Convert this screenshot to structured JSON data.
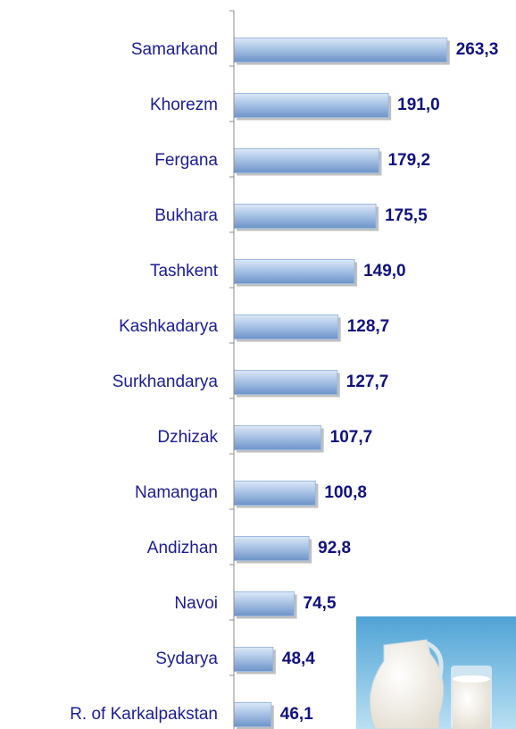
{
  "chart_data": {
    "type": "bar",
    "orientation": "horizontal",
    "categories": [
      "Samarkand",
      "Khorezm",
      "Fergana",
      "Bukhara",
      "Tashkent",
      "Kashkadarya",
      "Surkhandarya",
      "Dzhizak",
      "Namangan",
      "Andizhan",
      "Navoi",
      "Sydarya",
      "R. of Karkalpakstan"
    ],
    "values": [
      263.3,
      191.0,
      179.2,
      175.5,
      149.0,
      128.7,
      127.7,
      107.7,
      100.8,
      92.8,
      74.5,
      48.4,
      46.1
    ],
    "value_labels": [
      "263,3",
      "191,0",
      "179,2",
      "175,5",
      "149,0",
      "128,7",
      "127,7",
      "107,7",
      "100,8",
      "92,8",
      "74,5",
      "48,4",
      "46,1"
    ],
    "color": "#9dbbe0",
    "xlim": [
      0,
      300
    ]
  }
}
